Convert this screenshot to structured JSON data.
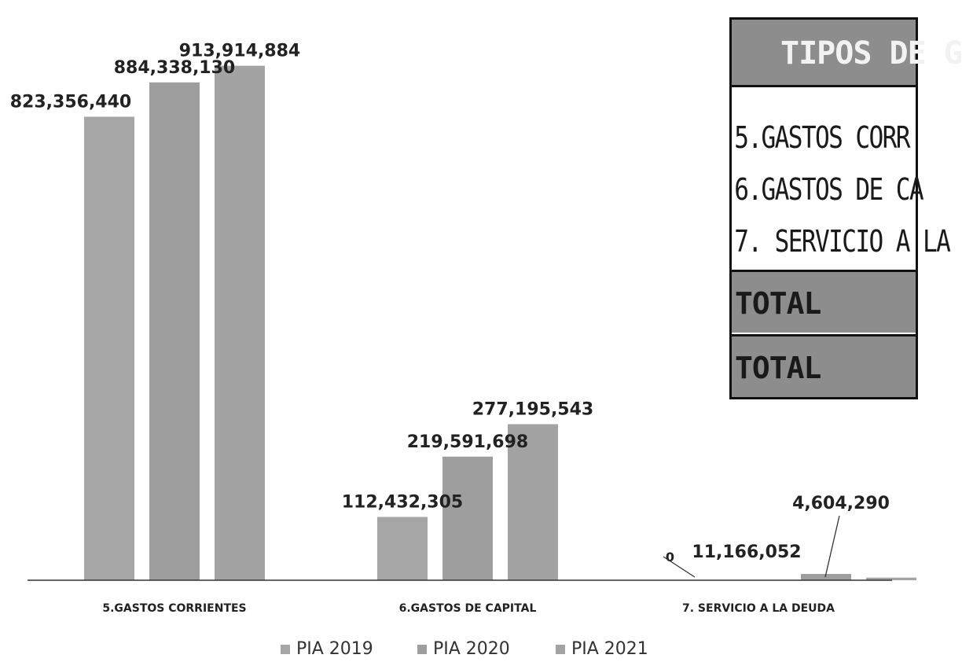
{
  "chart_data": {
    "type": "bar",
    "categories": [
      "5.GASTOS CORRIENTES",
      "6.GASTOS DE CAPITAL",
      "7. SERVICIO A LA DEUDA"
    ],
    "series": [
      {
        "name": "PIA 2019",
        "values": [
          823356440,
          112432305,
          0
        ]
      },
      {
        "name": "PIA 2020",
        "values": [
          884338130,
          219591698,
          11166052
        ]
      },
      {
        "name": "PIA 2021",
        "values": [
          913914884,
          277195543,
          4604290
        ]
      }
    ],
    "data_labels": [
      [
        "823,356,440",
        "112,432,305",
        "0"
      ],
      [
        "884,338,130",
        "219,591,698",
        "11,166,052"
      ],
      [
        "913,914,884",
        "277,195,543",
        "4,604,290"
      ]
    ],
    "title": "",
    "xlabel": "",
    "ylabel": "",
    "ylim": [
      0,
      1000000000
    ],
    "grid": false,
    "legend_position": "bottom",
    "colors": [
      "#a6a6a6",
      "#9e9e9e",
      "#a3a3a3"
    ]
  },
  "table": {
    "header": "TIPOS DE G",
    "rows": [
      "5.GASTOS CORR",
      "6.GASTOS DE CA",
      "7. SERVICIO A LA"
    ],
    "totals": [
      "TOTAL",
      "TOTAL"
    ],
    "header_color": "#8d8d8d"
  }
}
